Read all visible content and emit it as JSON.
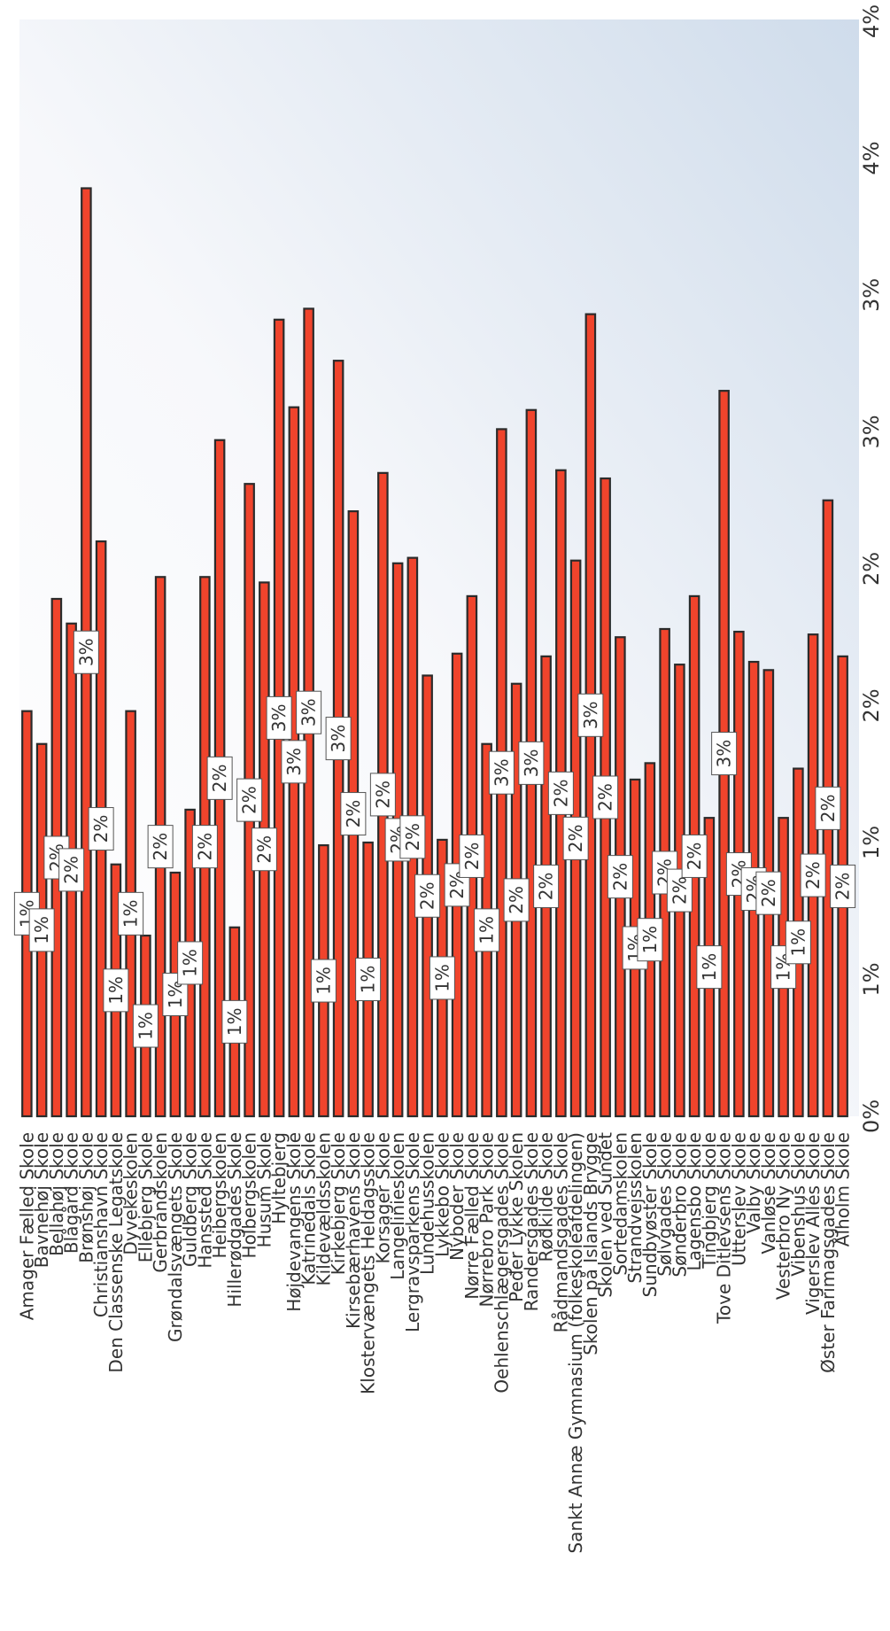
{
  "chart_data": {
    "type": "bar",
    "orientation": "horizontal",
    "y_axis_position": "right",
    "xlim": [
      0,
      4.25
    ],
    "ticks": [
      {
        "value": 0,
        "label": "0%"
      },
      {
        "value": 0.5,
        "label": "1%"
      },
      {
        "value": 1.0,
        "label": "1%"
      },
      {
        "value": 1.5,
        "label": "2%"
      },
      {
        "value": 2.0,
        "label": "2%"
      },
      {
        "value": 2.5,
        "label": "3%"
      },
      {
        "value": 3.0,
        "label": "3%"
      },
      {
        "value": 3.5,
        "label": "4%"
      },
      {
        "value": 4.0,
        "label": "4%"
      }
    ],
    "grid": false,
    "background": "gradient-white-to-light-blue",
    "bar_color": "#f0442c",
    "bar_border_color": "#2b2b2b",
    "categories": [
      "Amager Fælled Skole",
      "Bavnehøj Skole",
      "Bellahøj Skole",
      "Blågård Skole",
      "Brønshøj Skole",
      "Christianshavn Skole",
      "Den Classenske Legatskole",
      "Dyvekeskolen",
      "Ellebjerg Skole",
      "Gerbrandskolen",
      "Grøndalsvængets Skole",
      "Guldberg Skole",
      "Hanssted Skole",
      "Heibergskolen",
      "Hillerødgades Skole",
      "Holbergskolen",
      "Husum Skole",
      "Hyltebjerg",
      "Højdevangens Skole",
      "Katrinedals Skole",
      "Kildevældsskolen",
      "Kirkebjerg Skole",
      "Kirsebærhavens Skole",
      "Klostervængets Heldagsskole",
      "Korsager Skole",
      "Langelinieskolen",
      "Lergravsparkens Skole",
      "Lundehusskolen",
      "Lykkebo Skole",
      "Nyboder Skole",
      "Nørre Fælled Skole",
      "Nørrebro Park Skole",
      "Oehlenschlægersgades Skole",
      "Peder Lykke Skolen",
      "Randersgades Skole",
      "Rødkilde Skole",
      "Rådmandsgades Skole",
      "Sankt Annæ Gymnasium (folkeskoleafdelingen)",
      "Skolen på Islands Brygge",
      "Skolen ved Sundet",
      "Sortedamskolen",
      "Strandvejsskolen",
      "Sundbyøster Skole",
      "Sølvgades Skole",
      "Sønderbro Skole",
      "Lagensbo Skole",
      "Tingbjerg Skole",
      "Tove Ditlevsens Skole",
      "Utterslev Skole",
      "Valby Skole",
      "Vanløse Skole",
      "Vesterbro Ny Skole",
      "Vibenshus Skole",
      "Vigerslev Allés Skole",
      "Øster Farimagsgades Skole",
      "Ålholm Skole"
    ],
    "values": [
      1.48,
      1.36,
      1.89,
      1.8,
      3.39,
      2.1,
      0.92,
      1.48,
      0.66,
      1.97,
      0.89,
      1.12,
      1.97,
      2.47,
      0.69,
      2.31,
      1.95,
      2.91,
      2.59,
      2.95,
      0.99,
      2.76,
      2.21,
      1.0,
      2.35,
      2.02,
      2.04,
      1.61,
      1.01,
      1.69,
      1.9,
      1.36,
      2.51,
      1.58,
      2.58,
      1.68,
      2.36,
      2.03,
      2.93,
      2.33,
      1.75,
      1.23,
      1.29,
      1.78,
      1.65,
      1.9,
      1.09,
      2.65,
      1.77,
      1.66,
      1.63,
      1.09,
      1.27,
      1.76,
      2.25,
      1.68
    ],
    "data_labels": [
      "1%",
      "1%",
      "2%",
      "2%",
      "3%",
      "2%",
      "1%",
      "1%",
      "1%",
      "2%",
      "1%",
      "1%",
      "2%",
      "2%",
      "1%",
      "2%",
      "2%",
      "3%",
      "3%",
      "3%",
      "1%",
      "3%",
      "2%",
      "1%",
      "2%",
      "2%",
      "2%",
      "2%",
      "1%",
      "2%",
      "2%",
      "1%",
      "3%",
      "2%",
      "3%",
      "2%",
      "2%",
      "2%",
      "3%",
      "2%",
      "2%",
      "1%",
      "1%",
      "2%",
      "2%",
      "2%",
      "1%",
      "3%",
      "2%",
      "2%",
      "2%",
      "1%",
      "1%",
      "2%",
      "2%",
      "2%"
    ]
  }
}
